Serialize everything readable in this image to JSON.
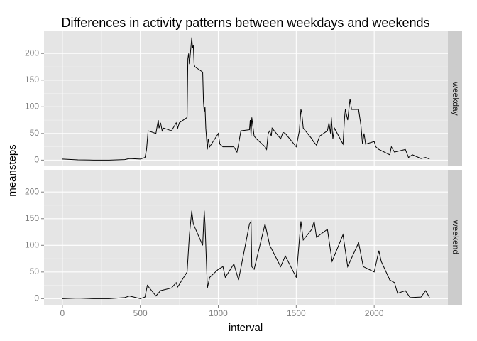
{
  "chart_data": {
    "type": "line",
    "title": "Differences in activity patterns between weekdays and weekends",
    "x_label": "interval",
    "y_label": "meansteps",
    "color": "#000000",
    "grid": true,
    "xlim": [
      -117.75,
      2472.75
    ],
    "xticks": [
      0,
      500,
      1000,
      1500,
      2000
    ],
    "ylim": [
      -11.5,
      241.6
    ],
    "yticks": [
      0,
      50,
      100,
      150,
      200
    ],
    "panels": [
      {
        "name": "weekday",
        "x": [
          0,
          100,
          200,
          300,
          400,
          430,
          500,
          530,
          540,
          550,
          600,
          615,
          620,
          630,
          640,
          650,
          700,
          720,
          730,
          740,
          750,
          800,
          805,
          810,
          815,
          830,
          835,
          840,
          845,
          850,
          900,
          905,
          910,
          915,
          920,
          930,
          935,
          945,
          1000,
          1010,
          1030,
          1100,
          1120,
          1130,
          1145,
          1200,
          1205,
          1210,
          1215,
          1230,
          1245,
          1300,
          1310,
          1320,
          1330,
          1340,
          1345,
          1400,
          1415,
          1430,
          1500,
          1520,
          1530,
          1535,
          1545,
          1600,
          1610,
          1630,
          1650,
          1700,
          1710,
          1720,
          1725,
          1735,
          1745,
          1800,
          1810,
          1815,
          1830,
          1845,
          1855,
          1900,
          1915,
          1925,
          1935,
          1945,
          2000,
          2010,
          2030,
          2100,
          2110,
          2130,
          2200,
          2220,
          2245,
          2300,
          2330,
          2355
        ],
        "values": [
          2,
          0.5,
          0,
          0,
          1,
          3,
          2,
          5,
          20,
          55,
          50,
          75,
          60,
          70,
          55,
          60,
          55,
          65,
          70,
          60,
          70,
          80,
          190,
          200,
          180,
          230,
          210,
          215,
          180,
          175,
          165,
          110,
          90,
          100,
          60,
          20,
          40,
          25,
          50,
          30,
          25,
          25,
          15,
          30,
          55,
          57,
          75,
          45,
          80,
          45,
          40,
          25,
          20,
          50,
          55,
          45,
          60,
          40,
          52,
          50,
          25,
          55,
          95,
          90,
          60,
          40,
          35,
          28,
          45,
          55,
          70,
          50,
          80,
          40,
          60,
          30,
          80,
          95,
          75,
          115,
          95,
          95,
          65,
          30,
          50,
          30,
          35,
          25,
          20,
          10,
          25,
          15,
          20,
          5,
          10,
          3,
          5,
          2
        ]
      },
      {
        "name": "weekend",
        "x": [
          0,
          100,
          200,
          300,
          400,
          430,
          500,
          530,
          545,
          600,
          630,
          700,
          730,
          740,
          800,
          815,
          830,
          840,
          900,
          910,
          915,
          930,
          945,
          1000,
          1030,
          1045,
          1100,
          1130,
          1200,
          1210,
          1215,
          1230,
          1300,
          1330,
          1400,
          1430,
          1500,
          1530,
          1545,
          1600,
          1615,
          1630,
          1700,
          1730,
          1800,
          1830,
          1900,
          1930,
          2000,
          2030,
          2045,
          2100,
          2130,
          2150,
          2200,
          2230,
          2300,
          2330,
          2355
        ],
        "values": [
          0,
          1,
          0,
          0,
          2,
          5,
          0,
          3,
          25,
          5,
          15,
          20,
          30,
          22,
          50,
          120,
          165,
          140,
          100,
          165,
          140,
          20,
          40,
          55,
          60,
          40,
          65,
          35,
          140,
          145,
          60,
          55,
          140,
          100,
          60,
          80,
          40,
          145,
          110,
          130,
          145,
          115,
          130,
          70,
          120,
          60,
          105,
          60,
          50,
          90,
          70,
          35,
          30,
          10,
          15,
          2,
          3,
          15,
          2
        ]
      }
    ]
  }
}
